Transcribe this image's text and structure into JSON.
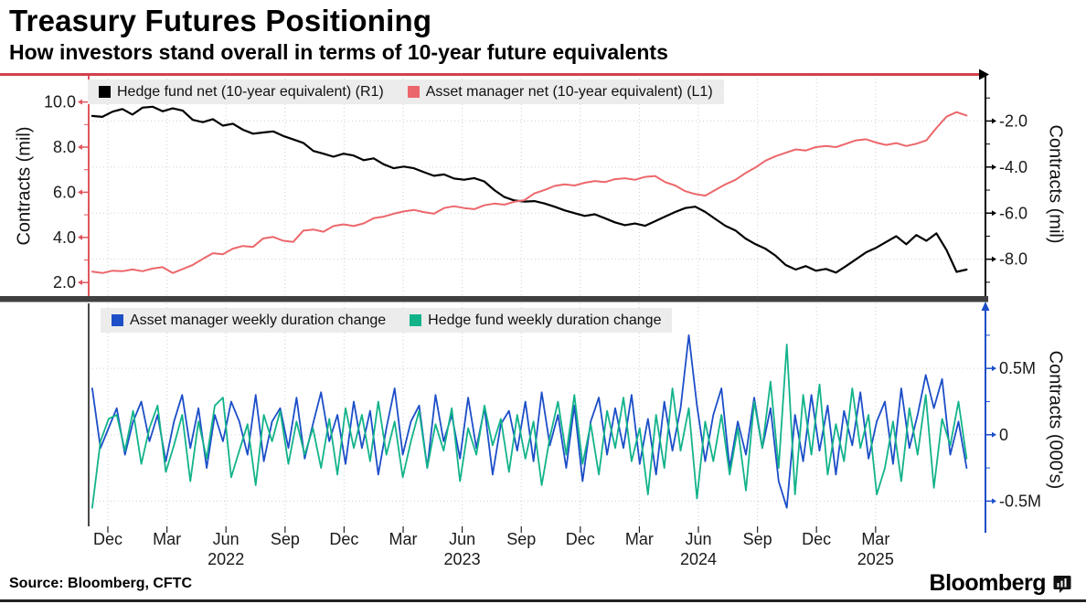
{
  "title": "Treasury Futures Positioning",
  "subtitle": "How investors stand overall in terms of 10-year future equivalents",
  "source_note": "Source: Bloomberg, CFTC",
  "brand": {
    "wordmark": "Bloomberg"
  },
  "colors": {
    "top_border": "#d0404b",
    "separator": "#404040",
    "bottom_bar": "#222222",
    "grid": "#cfcfcf",
    "legend_bg": "#ececec"
  },
  "x_axis": {
    "month_ticks": [
      {
        "label": "Dec",
        "f": 0.0214
      },
      {
        "label": "Mar",
        "f": 0.0873
      },
      {
        "label": "Jun",
        "f": 0.1531
      },
      {
        "label": "Sep",
        "f": 0.219
      },
      {
        "label": "Dec",
        "f": 0.2848
      },
      {
        "label": "Mar",
        "f": 0.3507
      },
      {
        "label": "Jun",
        "f": 0.4165
      },
      {
        "label": "Sep",
        "f": 0.4824
      },
      {
        "label": "Dec",
        "f": 0.5482
      },
      {
        "label": "Mar",
        "f": 0.6141
      },
      {
        "label": "Jun",
        "f": 0.6799
      },
      {
        "label": "Sep",
        "f": 0.7458
      },
      {
        "label": "Dec",
        "f": 0.8116
      },
      {
        "label": "Mar",
        "f": 0.8775
      }
    ],
    "year_labels": [
      {
        "label": "2022",
        "f": 0.1531
      },
      {
        "label": "2023",
        "f": 0.4165
      },
      {
        "label": "2024",
        "f": 0.6799
      },
      {
        "label": "2025",
        "f": 0.8775
      }
    ]
  },
  "chart_data": [
    {
      "id": "net-positioning",
      "type": "line",
      "panel": "top",
      "legend": [
        {
          "label": "Hedge fund net (10-year equivalent) (R1)",
          "color": "#000000"
        },
        {
          "label": "Asset manager net (10-year equivalent) (L1)",
          "color": "#ec676b"
        }
      ],
      "axes": [
        {
          "side": "left",
          "label": "Contracts (mil)",
          "color": "#e0565e",
          "range": [
            11.2,
            1.4
          ],
          "major_ticks": [
            {
              "v": 10,
              "label": "10.0"
            },
            {
              "v": 8,
              "label": "8.0"
            },
            {
              "v": 6,
              "label": "6.0"
            },
            {
              "v": 4,
              "label": "4.0"
            },
            {
              "v": 2,
              "label": "2.0"
            }
          ],
          "minor_ticks": [
            3,
            5,
            7,
            9
          ]
        },
        {
          "side": "right",
          "label": "Contracts (mil)",
          "color": "#000000",
          "range": [
            0,
            -9.6
          ],
          "major_ticks": [
            {
              "v": -2,
              "label": "-2.0"
            },
            {
              "v": -4,
              "label": "-4.0"
            },
            {
              "v": -6,
              "label": "-6.0"
            },
            {
              "v": -8,
              "label": "-8.0"
            }
          ],
          "minor_ticks": [
            -1,
            -3,
            -5,
            -7,
            -9
          ]
        }
      ],
      "h_gridlines": {
        "axis": 1,
        "values": [
          -2,
          -4,
          -6,
          -8
        ]
      },
      "series": [
        {
          "name": "Hedge fund net (10-year equivalent)",
          "axis": 1,
          "color": "#000000",
          "width": 2.2,
          "f0": 0.004,
          "f1": 0.979,
          "values": [
            -1.78,
            -1.82,
            -1.6,
            -1.48,
            -1.72,
            -1.42,
            -1.38,
            -1.58,
            -1.45,
            -1.55,
            -1.95,
            -2.05,
            -1.92,
            -2.2,
            -2.12,
            -2.38,
            -2.55,
            -2.5,
            -2.45,
            -2.65,
            -2.8,
            -2.95,
            -3.3,
            -3.42,
            -3.55,
            -3.42,
            -3.5,
            -3.7,
            -3.62,
            -3.88,
            -4.05,
            -3.98,
            -4.05,
            -4.22,
            -4.38,
            -4.32,
            -4.5,
            -4.55,
            -4.48,
            -4.62,
            -5.0,
            -5.3,
            -5.45,
            -5.5,
            -5.48,
            -5.58,
            -5.72,
            -5.88,
            -6.0,
            -6.12,
            -6.05,
            -6.22,
            -6.4,
            -6.52,
            -6.45,
            -6.55,
            -6.35,
            -6.15,
            -5.95,
            -5.78,
            -5.72,
            -5.95,
            -6.25,
            -6.55,
            -6.75,
            -7.1,
            -7.35,
            -7.55,
            -7.85,
            -8.25,
            -8.45,
            -8.3,
            -8.5,
            -8.42,
            -8.58,
            -8.3,
            -8.0,
            -7.7,
            -7.5,
            -7.25,
            -7.0,
            -7.35,
            -6.95,
            -7.2,
            -6.88,
            -7.6,
            -8.55,
            -8.45
          ]
        },
        {
          "name": "Asset manager net (10-year equivalent)",
          "axis": 0,
          "color": "#ec676b",
          "width": 2,
          "f0": 0.004,
          "f1": 0.979,
          "values": [
            2.48,
            2.42,
            2.52,
            2.5,
            2.58,
            2.5,
            2.62,
            2.68,
            2.42,
            2.6,
            2.78,
            3.05,
            3.3,
            3.25,
            3.5,
            3.62,
            3.58,
            3.95,
            4.02,
            3.85,
            3.8,
            4.3,
            4.35,
            4.25,
            4.5,
            4.58,
            4.5,
            4.62,
            4.85,
            4.92,
            5.05,
            5.15,
            5.22,
            5.12,
            5.05,
            5.3,
            5.38,
            5.3,
            5.25,
            5.42,
            5.5,
            5.45,
            5.58,
            5.65,
            5.95,
            6.1,
            6.28,
            6.35,
            6.3,
            6.42,
            6.5,
            6.45,
            6.58,
            6.62,
            6.55,
            6.68,
            6.72,
            6.45,
            6.3,
            6.05,
            5.92,
            5.85,
            6.1,
            6.35,
            6.55,
            6.85,
            7.1,
            7.4,
            7.6,
            7.75,
            7.9,
            7.85,
            8.0,
            8.05,
            8.0,
            8.15,
            8.3,
            8.35,
            8.2,
            8.1,
            8.18,
            8.05,
            8.15,
            8.3,
            8.85,
            9.35,
            9.55,
            9.4
          ]
        }
      ]
    },
    {
      "id": "weekly-duration-change",
      "type": "line",
      "panel": "bottom",
      "legend": [
        {
          "label": "Asset manager weekly duration change",
          "color": "#1c4ec8"
        },
        {
          "label": "Hedge fund weekly duration change",
          "color": "#13b38a"
        }
      ],
      "axes": [
        {
          "side": "right",
          "label": "Contracts (000's)",
          "color": "#1c4ec8",
          "range": [
            0.99,
            -0.69
          ],
          "major_ticks": [
            {
              "v": 0.5,
              "label": "0.5M"
            },
            {
              "v": 0,
              "label": "0"
            },
            {
              "v": -0.5,
              "label": "-0.5M"
            }
          ],
          "minor_ticks": [
            0.75,
            0.25,
            -0.25
          ]
        }
      ],
      "h_gridlines": {
        "axis": 0,
        "values": [
          0.5,
          0,
          -0.5
        ]
      },
      "series": [
        {
          "name": "Asset manager weekly duration change",
          "axis": 0,
          "color": "#1c4ec8",
          "width": 1.8,
          "f0": 0.004,
          "f1": 0.979,
          "values": [
            0.35,
            -0.1,
            0.05,
            0.2,
            -0.15,
            0.1,
            0.25,
            -0.05,
            0.15,
            -0.2,
            0.1,
            0.3,
            -0.1,
            0.2,
            -0.25,
            0.15,
            -0.05,
            0.25,
            0.1,
            -0.15,
            0.3,
            -0.2,
            0.1,
            0.2,
            -0.1,
            0.28,
            -0.18,
            0.08,
            0.32,
            -0.05,
            0.15,
            -0.22,
            0.25,
            -0.1,
            0.18,
            -0.3,
            0.05,
            0.35,
            -0.15,
            0.1,
            0.22,
            -0.25,
            0.3,
            -0.05,
            0.15,
            -0.18,
            0.28,
            -0.1,
            0.2,
            -0.3,
            0.08,
            0.18,
            -0.12,
            0.25,
            -0.2,
            0.32,
            -0.08,
            0.15,
            -0.25,
            0.22,
            -0.35,
            0.1,
            0.28,
            -0.15,
            0.2,
            -0.1,
            0.3,
            -0.22,
            0.12,
            -0.3,
            0.25,
            -0.12,
            0.2,
            0.75,
            0.22,
            -0.2,
            0.15,
            0.35,
            -0.25,
            0.1,
            -0.15,
            0.28,
            -0.1,
            0.2,
            -0.35,
            -0.55,
            0.15,
            -0.2,
            0.3,
            -0.12,
            0.22,
            -0.3,
            0.18,
            -0.08,
            0.32,
            -0.18,
            0.1,
            0.25,
            -0.22,
            0.35,
            -0.1,
            0.15,
            0.45,
            0.2,
            0.42,
            -0.15,
            0.1,
            -0.25
          ]
        },
        {
          "name": "Hedge fund weekly duration change",
          "axis": 0,
          "color": "#13b38a",
          "width": 1.8,
          "f0": 0.004,
          "f1": 0.979,
          "values": [
            -0.55,
            -0.05,
            0.12,
            0.15,
            -0.12,
            0.18,
            -0.22,
            0.05,
            0.22,
            -0.28,
            -0.08,
            0.15,
            -0.35,
            0.1,
            -0.18,
            0.22,
            0.28,
            -0.32,
            -0.12,
            0.08,
            -0.38,
            0.15,
            -0.05,
            0.18,
            -0.22,
            0.1,
            -0.15,
            0.05,
            -0.25,
            0.12,
            -0.3,
            0.2,
            -0.1,
            0.15,
            -0.2,
            0.25,
            -0.15,
            0.1,
            -0.32,
            -0.05,
            0.18,
            -0.25,
            0.08,
            -0.12,
            0.2,
            -0.35,
            0.05,
            -0.15,
            0.22,
            -0.08,
            0.12,
            -0.28,
            0.15,
            -0.18,
            0.1,
            -0.38,
            -0.02,
            0.25,
            -0.15,
            0.3,
            -0.22,
            0.08,
            -0.3,
            0.18,
            -0.1,
            0.28,
            -0.2,
            0.05,
            -0.45,
            0.15,
            -0.25,
            0.35,
            -0.12,
            0.2,
            -0.48,
            0.1,
            -0.2,
            0.15,
            -0.3,
            0.05,
            -0.42,
            0.25,
            -0.1,
            0.4,
            -0.25,
            0.68,
            -0.45,
            0.3,
            -0.15,
            0.38,
            -0.3,
            0.08,
            -0.2,
            0.35,
            -0.1,
            0.15,
            -0.45,
            -0.25,
            0.1,
            -0.35,
            0.2,
            -0.15,
            0.3,
            -0.4,
            0.12,
            -0.08,
            0.25,
            -0.18
          ]
        }
      ]
    }
  ]
}
